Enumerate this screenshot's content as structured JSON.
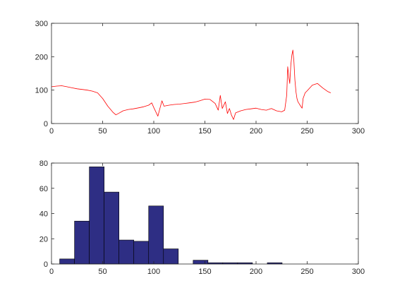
{
  "chart_data": [
    {
      "type": "line",
      "title": "",
      "xlabel": "",
      "ylabel": "",
      "xlim": [
        0,
        300
      ],
      "ylim": [
        0,
        300
      ],
      "xticks": [
        "0",
        "50",
        "100",
        "150",
        "200",
        "250",
        "300"
      ],
      "yticks": [
        "0",
        "100",
        "200",
        "300"
      ],
      "grid": false,
      "color": "#ff0000",
      "series": [
        {
          "x": [
            0,
            5,
            10,
            15,
            20,
            25,
            30,
            35,
            40,
            45,
            50,
            55,
            60,
            63,
            66,
            70,
            75,
            80,
            85,
            90,
            95,
            98,
            100,
            102,
            104,
            106,
            108,
            110,
            115,
            120,
            125,
            130,
            135,
            140,
            145,
            150,
            155,
            160,
            163,
            165,
            167,
            170,
            172,
            174,
            176,
            178,
            180,
            185,
            190,
            195,
            200,
            205,
            210,
            215,
            220,
            225,
            228,
            230,
            231,
            232,
            233,
            234,
            235,
            236,
            237,
            238,
            239,
            240,
            241,
            242,
            243,
            244,
            245,
            246,
            248,
            250,
            255,
            260,
            265,
            270,
            273
          ],
          "y": [
            110,
            112,
            113,
            110,
            107,
            104,
            102,
            100,
            97,
            92,
            75,
            52,
            34,
            26,
            31,
            38,
            42,
            44,
            47,
            50,
            55,
            62,
            48,
            35,
            22,
            45,
            68,
            52,
            55,
            57,
            58,
            60,
            62,
            64,
            68,
            73,
            72,
            60,
            40,
            84,
            45,
            65,
            30,
            45,
            25,
            12,
            32,
            38,
            42,
            44,
            46,
            42,
            40,
            45,
            38,
            35,
            40,
            85,
            170,
            140,
            120,
            175,
            205,
            220,
            185,
            130,
            95,
            75,
            65,
            60,
            55,
            50,
            46,
            75,
            92,
            98,
            115,
            120,
            107,
            96,
            92
          ]
        }
      ]
    },
    {
      "type": "bar",
      "title": "",
      "xlabel": "",
      "ylabel": "",
      "xlim": [
        0,
        300
      ],
      "ylim": [
        0,
        80
      ],
      "xticks": [
        "0",
        "50",
        "100",
        "150",
        "200",
        "250",
        "300"
      ],
      "yticks": [
        "0",
        "20",
        "40",
        "60",
        "80"
      ],
      "grid": false,
      "bar_color": "#2e2e84",
      "bin_width": 14.5,
      "bin_edges_start": 8,
      "values": [
        4,
        34,
        77,
        57,
        19,
        18,
        46,
        12,
        0,
        3,
        1,
        1,
        1,
        0,
        1,
        0,
        0
      ]
    }
  ]
}
